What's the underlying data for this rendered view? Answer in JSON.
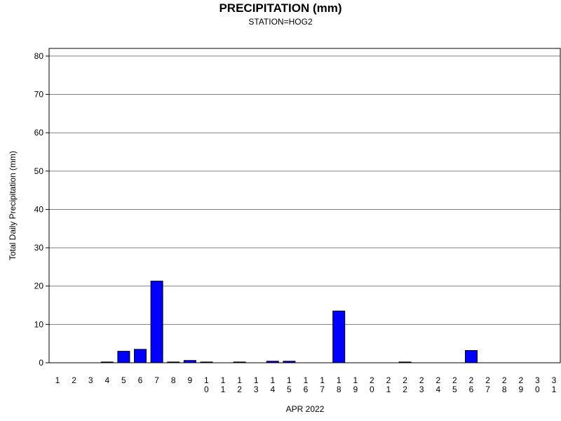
{
  "chart_data": {
    "type": "bar",
    "title": "PRECIPITATION (mm)",
    "subtitle": "STATION=HOG2",
    "xlabel": "APR 2022",
    "ylabel": "Total Daily Precipitation (mm)",
    "ylim": [
      0,
      80
    ],
    "yticks": [
      "0",
      "10",
      "20",
      "30",
      "40",
      "50",
      "60",
      "70",
      "80"
    ],
    "grid": true,
    "bar_color": "#0000FF",
    "categories": [
      "1",
      "2",
      "3",
      "4",
      "5",
      "6",
      "7",
      "8",
      "9",
      "10",
      "11",
      "12",
      "13",
      "14",
      "15",
      "16",
      "17",
      "18",
      "19",
      "20",
      "21",
      "22",
      "23",
      "24",
      "25",
      "26",
      "27",
      "28",
      "29",
      "30",
      "31"
    ],
    "values": [
      0,
      0,
      0,
      0.2,
      3.0,
      3.5,
      21.3,
      0.2,
      0.6,
      0.2,
      0,
      0.2,
      0,
      0.4,
      0.4,
      0,
      0,
      13.5,
      0,
      0,
      0,
      0.2,
      0,
      0,
      0,
      3.2,
      0,
      0,
      0,
      0,
      0
    ]
  }
}
